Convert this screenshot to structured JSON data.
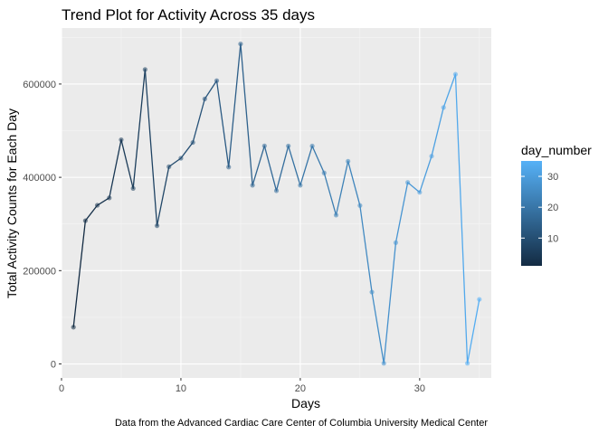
{
  "chart_data": {
    "type": "line",
    "title": "Trend Plot for Activity Across 35 days",
    "xlabel": "Days",
    "ylabel": "Total Activity Counts for Each Day",
    "caption": "Data from the Advanced Cardiac Care Center of Columbia University Medical Center",
    "xlim": [
      0,
      36
    ],
    "ylim": [
      -30000,
      720000
    ],
    "x_ticks": [
      0,
      10,
      20,
      30
    ],
    "y_ticks": [
      0,
      200000,
      400000,
      600000
    ],
    "y_tick_labels": [
      "0",
      "200000",
      "400000",
      "600000"
    ],
    "x_minor_gridlines": [
      5,
      15,
      25,
      35
    ],
    "y_minor_gridlines": [
      100000,
      300000,
      500000,
      700000
    ],
    "legend": {
      "title": "day_number",
      "position": "right",
      "ticks": [
        10,
        20,
        30
      ],
      "range": [
        1,
        35
      ],
      "color_low": "#132B43",
      "color_high": "#56B1F7"
    },
    "series": [
      {
        "name": "total_activity",
        "x": [
          1,
          2,
          3,
          4,
          5,
          6,
          7,
          8,
          9,
          10,
          11,
          12,
          13,
          14,
          15,
          16,
          17,
          18,
          19,
          20,
          21,
          22,
          23,
          24,
          25,
          26,
          27,
          28,
          29,
          30,
          31,
          32,
          33,
          34,
          35
        ],
        "values": [
          78830,
          307094,
          340115,
          355924,
          480543,
          376254,
          631105,
          296250,
          422742,
          440924,
          474712,
          568082,
          607175,
          422018,
          685910,
          382929,
          467420,
          371230,
          467244,
          382928,
          467052,
          409451,
          319000,
          434460,
          339600,
          154000,
          1440,
          260000,
          389080,
          367830,
          445366,
          549658,
          620860,
          1440,
          138421
        ]
      }
    ]
  }
}
